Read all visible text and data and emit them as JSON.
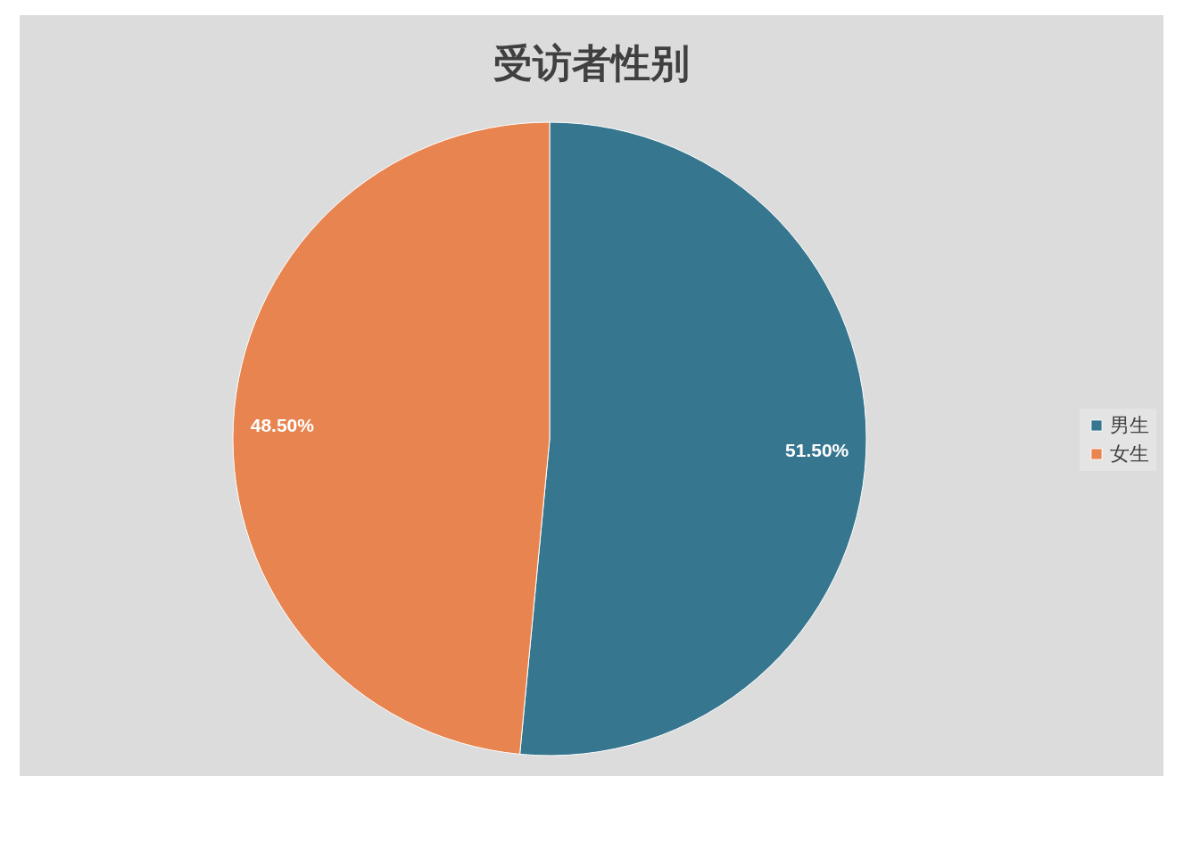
{
  "chart_data": {
    "type": "pie",
    "title": "受访者性别",
    "categories": [
      "男生",
      "女生"
    ],
    "values": [
      51.5,
      48.5
    ],
    "colors": [
      "#36768f",
      "#e8844f"
    ],
    "value_labels": [
      "51.50%",
      "48.50%"
    ],
    "legend": "right"
  }
}
